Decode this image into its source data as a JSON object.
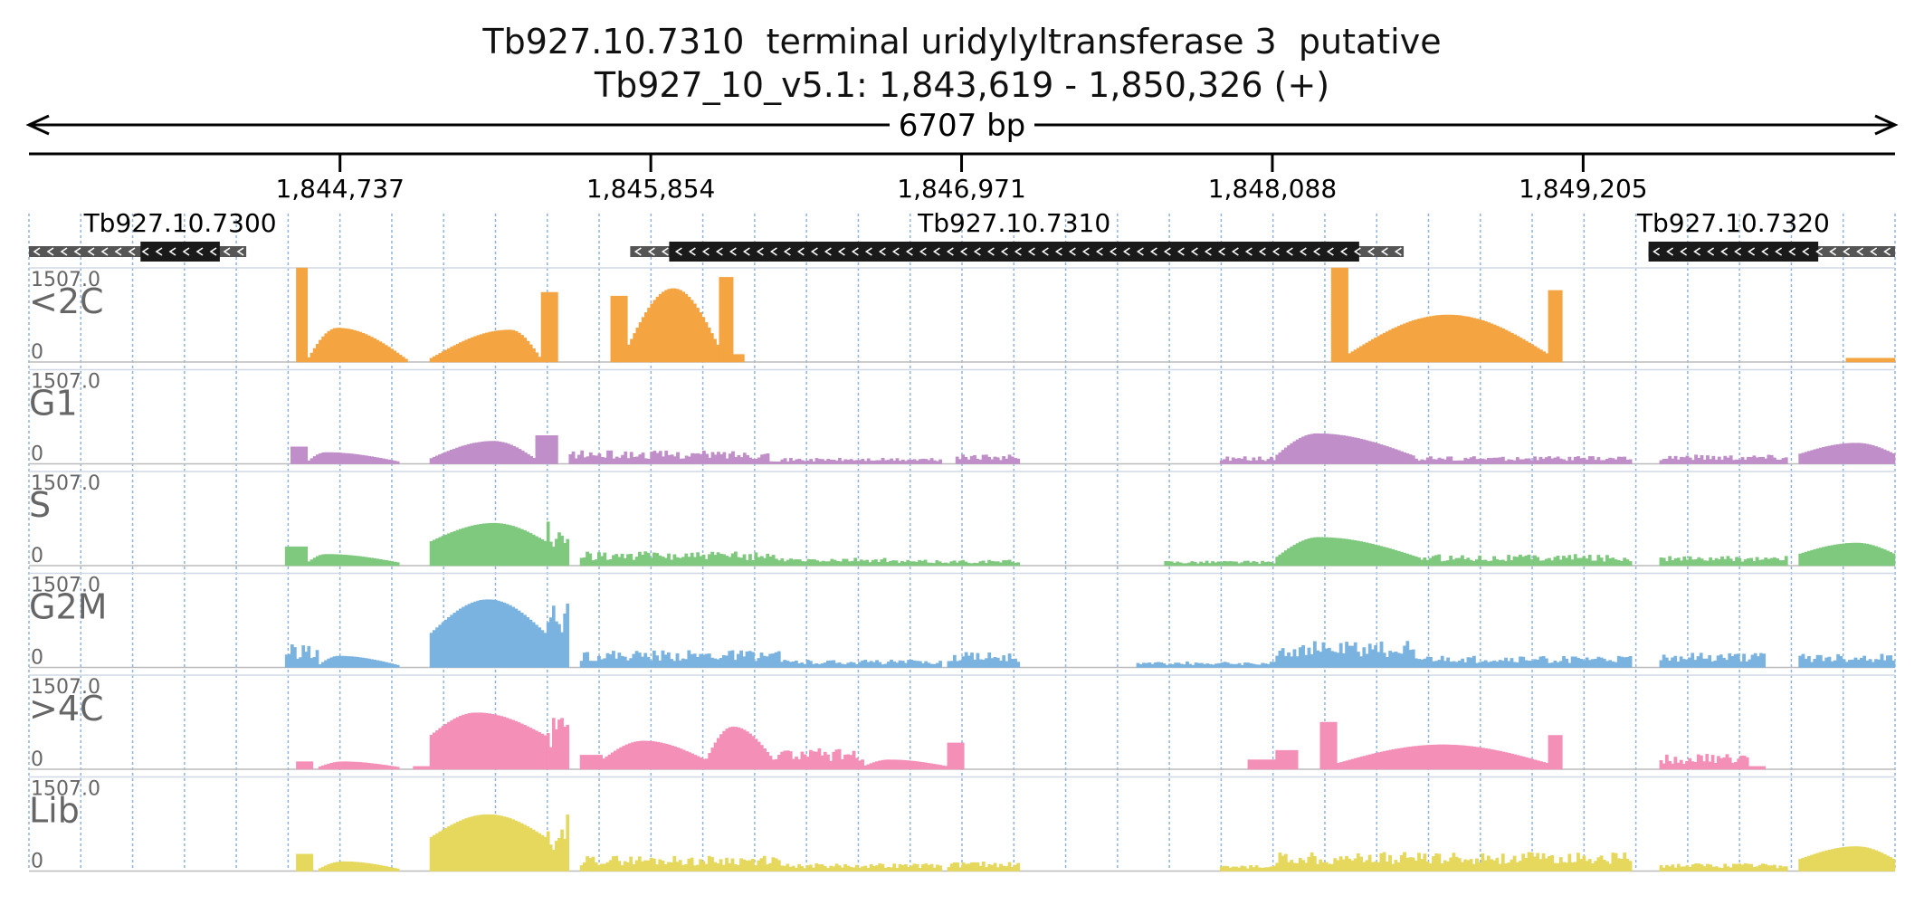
{
  "header": {
    "title": "Tb927.10.7310  terminal uridylyltransferase 3  putative",
    "location": "Tb927_10_v5.1: 1,843,619 - 1,850,326 (+)"
  },
  "region": {
    "start": 1843619,
    "end": 1850326,
    "span_label": "6707 bp"
  },
  "ruler": {
    "ticks": [
      {
        "pos": 1844737,
        "label": "1,844,737"
      },
      {
        "pos": 1845854,
        "label": "1,845,854"
      },
      {
        "pos": 1846971,
        "label": "1,846,971"
      },
      {
        "pos": 1848088,
        "label": "1,848,088"
      },
      {
        "pos": 1849205,
        "label": "1,849,205"
      }
    ]
  },
  "genes": [
    {
      "name": "Tb927.10.7300",
      "start": 1843619,
      "end": 1844400,
      "cds_start": 1844020,
      "cds_end": 1844305,
      "strand": "-"
    },
    {
      "name": "Tb927.10.7310",
      "start": 1845780,
      "end": 1848560,
      "cds_start": 1845920,
      "cds_end": 1848400,
      "strand": "-"
    },
    {
      "name": "Tb927.10.7320",
      "start": 1849440,
      "end": 1850326,
      "cds_start": 1849440,
      "cds_end": 1850050,
      "strand": "-"
    }
  ],
  "colors": {
    "gene_cds": "#1a1a1a",
    "gene_utr": "#555555",
    "gridline": "#8fb3e0",
    "track_label": "#666666",
    "baseline": "#bbbbbb"
  },
  "tracks": [
    {
      "name": "<2C",
      "max_label": "1507.0",
      "min_label": "0",
      "color": "#f5a442",
      "segments": [
        {
          "start": 1844580,
          "end": 1844620,
          "shape": "flat",
          "level": 1.0
        },
        {
          "start": 1844620,
          "end": 1844980,
          "shape": "bump",
          "level": 0.36,
          "peak": 0.3,
          "base": 0.02
        },
        {
          "start": 1845060,
          "end": 1845460,
          "shape": "bump",
          "level": 0.34,
          "peak": 0.72,
          "base": 0.03
        },
        {
          "start": 1845460,
          "end": 1845520,
          "shape": "flat",
          "level": 0.74
        },
        {
          "start": 1845710,
          "end": 1845770,
          "shape": "flat",
          "level": 0.7
        },
        {
          "start": 1845770,
          "end": 1846100,
          "shape": "bump",
          "level": 0.78,
          "peak": 0.5,
          "base": 0.15
        },
        {
          "start": 1846100,
          "end": 1846150,
          "shape": "flat",
          "level": 0.9
        },
        {
          "start": 1846150,
          "end": 1846190,
          "shape": "flat",
          "level": 0.08
        },
        {
          "start": 1848300,
          "end": 1848360,
          "shape": "flat",
          "level": 1.0
        },
        {
          "start": 1848360,
          "end": 1849080,
          "shape": "bump",
          "level": 0.5,
          "peak": 0.5,
          "base": 0.08
        },
        {
          "start": 1849080,
          "end": 1849130,
          "shape": "flat",
          "level": 0.76
        },
        {
          "start": 1850150,
          "end": 1850326,
          "shape": "flat",
          "level": 0.04
        }
      ]
    },
    {
      "name": "G1",
      "max_label": "1507.0",
      "min_label": "0",
      "color": "#c08ec8",
      "segments": [
        {
          "start": 1844560,
          "end": 1844620,
          "shape": "flat",
          "level": 0.18
        },
        {
          "start": 1844620,
          "end": 1844950,
          "shape": "bump",
          "level": 0.12,
          "peak": 0.2,
          "base": 0.02
        },
        {
          "start": 1845060,
          "end": 1845440,
          "shape": "bump",
          "level": 0.24,
          "peak": 0.6,
          "base": 0.05
        },
        {
          "start": 1845440,
          "end": 1845520,
          "shape": "flat",
          "level": 0.3
        },
        {
          "start": 1845560,
          "end": 1846280,
          "shape": "noise",
          "level": 0.14,
          "seed": 3
        },
        {
          "start": 1846280,
          "end": 1846900,
          "shape": "noise",
          "level": 0.06,
          "seed": 5
        },
        {
          "start": 1846950,
          "end": 1847180,
          "shape": "noise",
          "level": 0.1,
          "seed": 7
        },
        {
          "start": 1847900,
          "end": 1848100,
          "shape": "noise",
          "level": 0.08,
          "seed": 9
        },
        {
          "start": 1848100,
          "end": 1848600,
          "shape": "bump",
          "level": 0.32,
          "peak": 0.3,
          "base": 0.08
        },
        {
          "start": 1848600,
          "end": 1849380,
          "shape": "noise",
          "level": 0.08,
          "seed": 11
        },
        {
          "start": 1849480,
          "end": 1849940,
          "shape": "noise",
          "level": 0.1,
          "seed": 13
        },
        {
          "start": 1849980,
          "end": 1850326,
          "shape": "bump",
          "level": 0.22,
          "peak": 0.6,
          "base": 0.1
        }
      ]
    },
    {
      "name": "S",
      "max_label": "1507.0",
      "min_label": "0",
      "color": "#7fc97f",
      "segments": [
        {
          "start": 1844540,
          "end": 1844620,
          "shape": "flat",
          "level": 0.2
        },
        {
          "start": 1844620,
          "end": 1844950,
          "shape": "bump",
          "level": 0.12,
          "peak": 0.2,
          "base": 0.03
        },
        {
          "start": 1845060,
          "end": 1845480,
          "shape": "bump",
          "level": 0.45,
          "peak": 0.55,
          "base": 0.25
        },
        {
          "start": 1845480,
          "end": 1845560,
          "shape": "noise",
          "level": 0.55,
          "seed": 2
        },
        {
          "start": 1845600,
          "end": 1846300,
          "shape": "noise",
          "level": 0.15,
          "seed": 4
        },
        {
          "start": 1846300,
          "end": 1846700,
          "shape": "noise",
          "level": 0.08,
          "seed": 6
        },
        {
          "start": 1846700,
          "end": 1847180,
          "shape": "noise",
          "level": 0.06,
          "seed": 8
        },
        {
          "start": 1847700,
          "end": 1848100,
          "shape": "noise",
          "level": 0.05,
          "seed": 10
        },
        {
          "start": 1848100,
          "end": 1848620,
          "shape": "bump",
          "level": 0.3,
          "peak": 0.3,
          "base": 0.08
        },
        {
          "start": 1848620,
          "end": 1849380,
          "shape": "noise",
          "level": 0.12,
          "seed": 12
        },
        {
          "start": 1849480,
          "end": 1849940,
          "shape": "noise",
          "level": 0.1,
          "seed": 14
        },
        {
          "start": 1849980,
          "end": 1850326,
          "shape": "bump",
          "level": 0.24,
          "peak": 0.6,
          "base": 0.12
        }
      ]
    },
    {
      "name": "G2M",
      "max_label": "1507.0",
      "min_label": "0",
      "color": "#7bb3e0",
      "segments": [
        {
          "start": 1844540,
          "end": 1844660,
          "shape": "noise",
          "level": 0.25,
          "seed": 1
        },
        {
          "start": 1844660,
          "end": 1844950,
          "shape": "bump",
          "level": 0.12,
          "peak": 0.25,
          "base": 0.02
        },
        {
          "start": 1845060,
          "end": 1845480,
          "shape": "bump",
          "level": 0.72,
          "peak": 0.5,
          "base": 0.35
        },
        {
          "start": 1845480,
          "end": 1845560,
          "shape": "noise",
          "level": 0.7,
          "seed": 3
        },
        {
          "start": 1845600,
          "end": 1846320,
          "shape": "noise",
          "level": 0.18,
          "seed": 5
        },
        {
          "start": 1846320,
          "end": 1846900,
          "shape": "noise",
          "level": 0.08,
          "seed": 7
        },
        {
          "start": 1846920,
          "end": 1847180,
          "shape": "noise",
          "level": 0.16,
          "seed": 9
        },
        {
          "start": 1847600,
          "end": 1848100,
          "shape": "noise",
          "level": 0.06,
          "seed": 11
        },
        {
          "start": 1848100,
          "end": 1848600,
          "shape": "noise",
          "level": 0.28,
          "seed": 13
        },
        {
          "start": 1848600,
          "end": 1849380,
          "shape": "noise",
          "level": 0.12,
          "seed": 15
        },
        {
          "start": 1849480,
          "end": 1849860,
          "shape": "noise",
          "level": 0.16,
          "seed": 17
        },
        {
          "start": 1849980,
          "end": 1850326,
          "shape": "noise",
          "level": 0.15,
          "seed": 19
        }
      ]
    },
    {
      "name": ">4C",
      "max_label": "1507.0",
      "min_label": "0",
      "color": "#f48fb8",
      "segments": [
        {
          "start": 1844580,
          "end": 1844640,
          "shape": "flat",
          "level": 0.08
        },
        {
          "start": 1844660,
          "end": 1844950,
          "shape": "bump",
          "level": 0.08,
          "peak": 0.3,
          "base": 0.02
        },
        {
          "start": 1845000,
          "end": 1845060,
          "shape": "flat",
          "level": 0.03
        },
        {
          "start": 1845060,
          "end": 1845480,
          "shape": "bump",
          "level": 0.6,
          "peak": 0.4,
          "base": 0.35
        },
        {
          "start": 1845480,
          "end": 1845560,
          "shape": "noise",
          "level": 0.6,
          "seed": 2
        },
        {
          "start": 1845600,
          "end": 1845680,
          "shape": "flat",
          "level": 0.15
        },
        {
          "start": 1845680,
          "end": 1846050,
          "shape": "bump",
          "level": 0.3,
          "peak": 0.4,
          "base": 0.1
        },
        {
          "start": 1846050,
          "end": 1846300,
          "shape": "bump",
          "level": 0.45,
          "peak": 0.4,
          "base": 0.08
        },
        {
          "start": 1846300,
          "end": 1846620,
          "shape": "noise",
          "level": 0.22,
          "seed": 6
        },
        {
          "start": 1846620,
          "end": 1846920,
          "shape": "bump",
          "level": 0.1,
          "peak": 0.3,
          "base": 0.03
        },
        {
          "start": 1846920,
          "end": 1846980,
          "shape": "flat",
          "level": 0.28
        },
        {
          "start": 1848000,
          "end": 1848100,
          "shape": "flat",
          "level": 0.1
        },
        {
          "start": 1848100,
          "end": 1848180,
          "shape": "flat",
          "level": 0.2
        },
        {
          "start": 1848260,
          "end": 1848320,
          "shape": "flat",
          "level": 0.5
        },
        {
          "start": 1848320,
          "end": 1849080,
          "shape": "bump",
          "level": 0.26,
          "peak": 0.5,
          "base": 0.06
        },
        {
          "start": 1849080,
          "end": 1849130,
          "shape": "flat",
          "level": 0.36
        },
        {
          "start": 1849480,
          "end": 1849800,
          "shape": "noise",
          "level": 0.16,
          "seed": 16
        },
        {
          "start": 1849800,
          "end": 1849860,
          "shape": "flat",
          "level": 0.03
        }
      ]
    },
    {
      "name": "Lib",
      "max_label": "1507.0",
      "min_label": "0",
      "color": "#e5d85c",
      "segments": [
        {
          "start": 1844580,
          "end": 1844640,
          "shape": "flat",
          "level": 0.18
        },
        {
          "start": 1844660,
          "end": 1844950,
          "shape": "bump",
          "level": 0.1,
          "peak": 0.3,
          "base": 0.02
        },
        {
          "start": 1845060,
          "end": 1845480,
          "shape": "bump",
          "level": 0.6,
          "peak": 0.5,
          "base": 0.35
        },
        {
          "start": 1845480,
          "end": 1845560,
          "shape": "noise",
          "level": 0.62,
          "seed": 2
        },
        {
          "start": 1845600,
          "end": 1846320,
          "shape": "noise",
          "level": 0.16,
          "seed": 4
        },
        {
          "start": 1846320,
          "end": 1846900,
          "shape": "noise",
          "level": 0.08,
          "seed": 6
        },
        {
          "start": 1846920,
          "end": 1847180,
          "shape": "noise",
          "level": 0.1,
          "seed": 8
        },
        {
          "start": 1847900,
          "end": 1848100,
          "shape": "noise",
          "level": 0.06,
          "seed": 10
        },
        {
          "start": 1848100,
          "end": 1849380,
          "shape": "noise",
          "level": 0.2,
          "seed": 12
        },
        {
          "start": 1849480,
          "end": 1849940,
          "shape": "noise",
          "level": 0.08,
          "seed": 14
        },
        {
          "start": 1849980,
          "end": 1850326,
          "shape": "bump",
          "level": 0.26,
          "peak": 0.6,
          "base": 0.12
        }
      ]
    }
  ]
}
